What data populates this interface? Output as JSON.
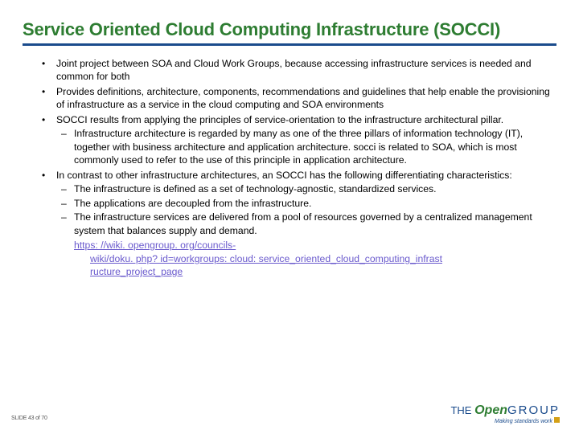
{
  "title": "Service Oriented Cloud Computing Infrastructure (SOCCI)",
  "bullets": {
    "b0": "Joint project between SOA and Cloud Work Groups, because accessing infrastructure services is needed and common for both",
    "b1": "Provides definitions, architecture, components, recommendations and guidelines that help enable the provisioning of infrastructure as a service in the cloud computing and SOA environments",
    "b2": "SOCCI results from applying the principles of service-orientation to the infrastructure architectural pillar.",
    "b2s0": "Infrastructure architecture is regarded by many as one of the three pillars of information technology (IT), together with business architecture and application architecture. socci is related to SOA, which is most commonly used to refer to the use of this principle in application architecture.",
    "b3": "In contrast to other infrastructure architectures, an SOCCI has the following differentiating characteristics:",
    "b3s0": "The infrastructure is defined as a set of technology-agnostic, standardized services.",
    "b3s1": "The applications are decoupled from the infrastructure.",
    "b3s2": "The infrastructure services are delivered from a pool of resources governed by a centralized management system that balances supply and demand."
  },
  "link": {
    "line1": "https: //wiki. opengroup. org/councils-",
    "line2": "wiki/doku. php? id=workgroups: cloud: service_oriented_cloud_computing_infrast",
    "line3": "ructure_project_page"
  },
  "slide_number": "SLIDE 43 of 70",
  "logo": {
    "the": "THE ",
    "open": "Open",
    "group": "GROUP",
    "tagline": "Making standards work"
  },
  "colors": {
    "title": "#2e7d32",
    "rule": "#1a4b8c",
    "link": "#6a5acd"
  }
}
